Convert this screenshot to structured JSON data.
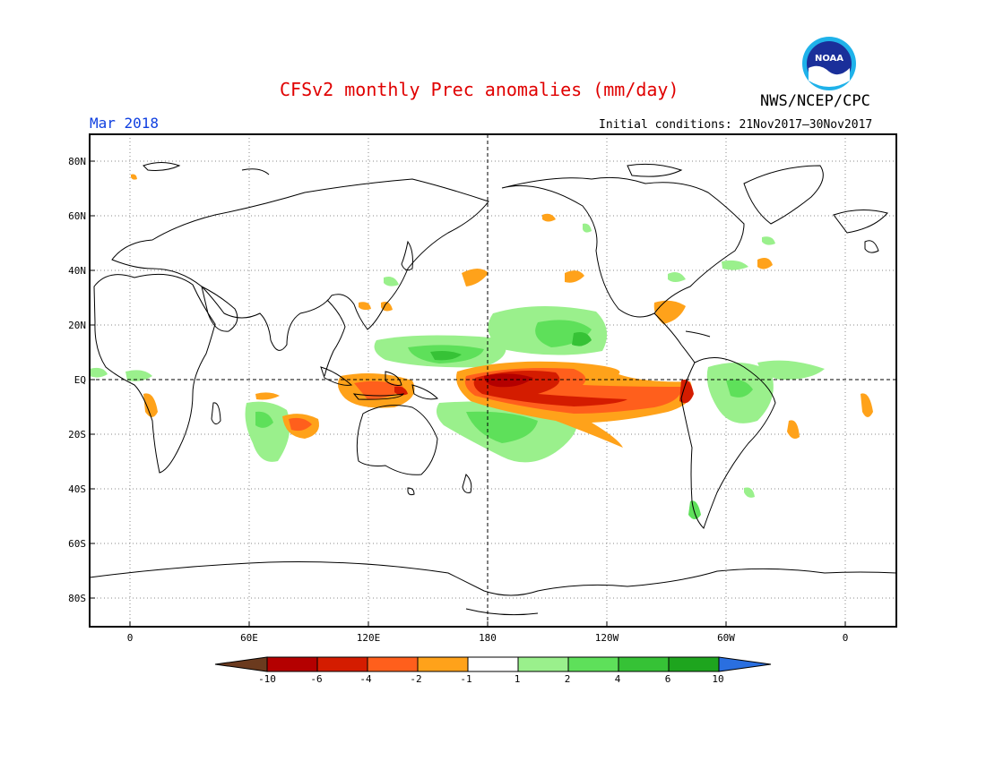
{
  "header": {
    "title": "CFSv2 monthly Prec anomalies (mm/day)",
    "valid_month": "Mar 2018",
    "initial_conditions": "Initial conditions: 21Nov2017—30Nov2017",
    "agency": "NWS/NCEP/CPC",
    "logo_icon": "noaa-logo-icon",
    "logo_text": "NOAA"
  },
  "map": {
    "projection": "cylindrical-equidistant",
    "center_longitude": "180",
    "lat_labels": [
      "80N",
      "60N",
      "40N",
      "20N",
      "EQ",
      "20S",
      "40S",
      "60S",
      "80S"
    ],
    "lon_labels": [
      "0",
      "60E",
      "120E",
      "180",
      "120W",
      "60W",
      "0"
    ],
    "grid": "dotted",
    "reference_lines": [
      "EQ",
      "180"
    ]
  },
  "colorbar": {
    "labels": [
      "-10",
      "-6",
      "-4",
      "-2",
      "-1",
      "1",
      "2",
      "4",
      "6",
      "10"
    ],
    "colors": [
      "#6b3a1e",
      "#b40000",
      "#d41c00",
      "#ff5f1c",
      "#ffa21a",
      "#ffffff",
      "#9af08c",
      "#5ee05a",
      "#36c236",
      "#1ea51e",
      "#2a6fe0"
    ]
  }
}
